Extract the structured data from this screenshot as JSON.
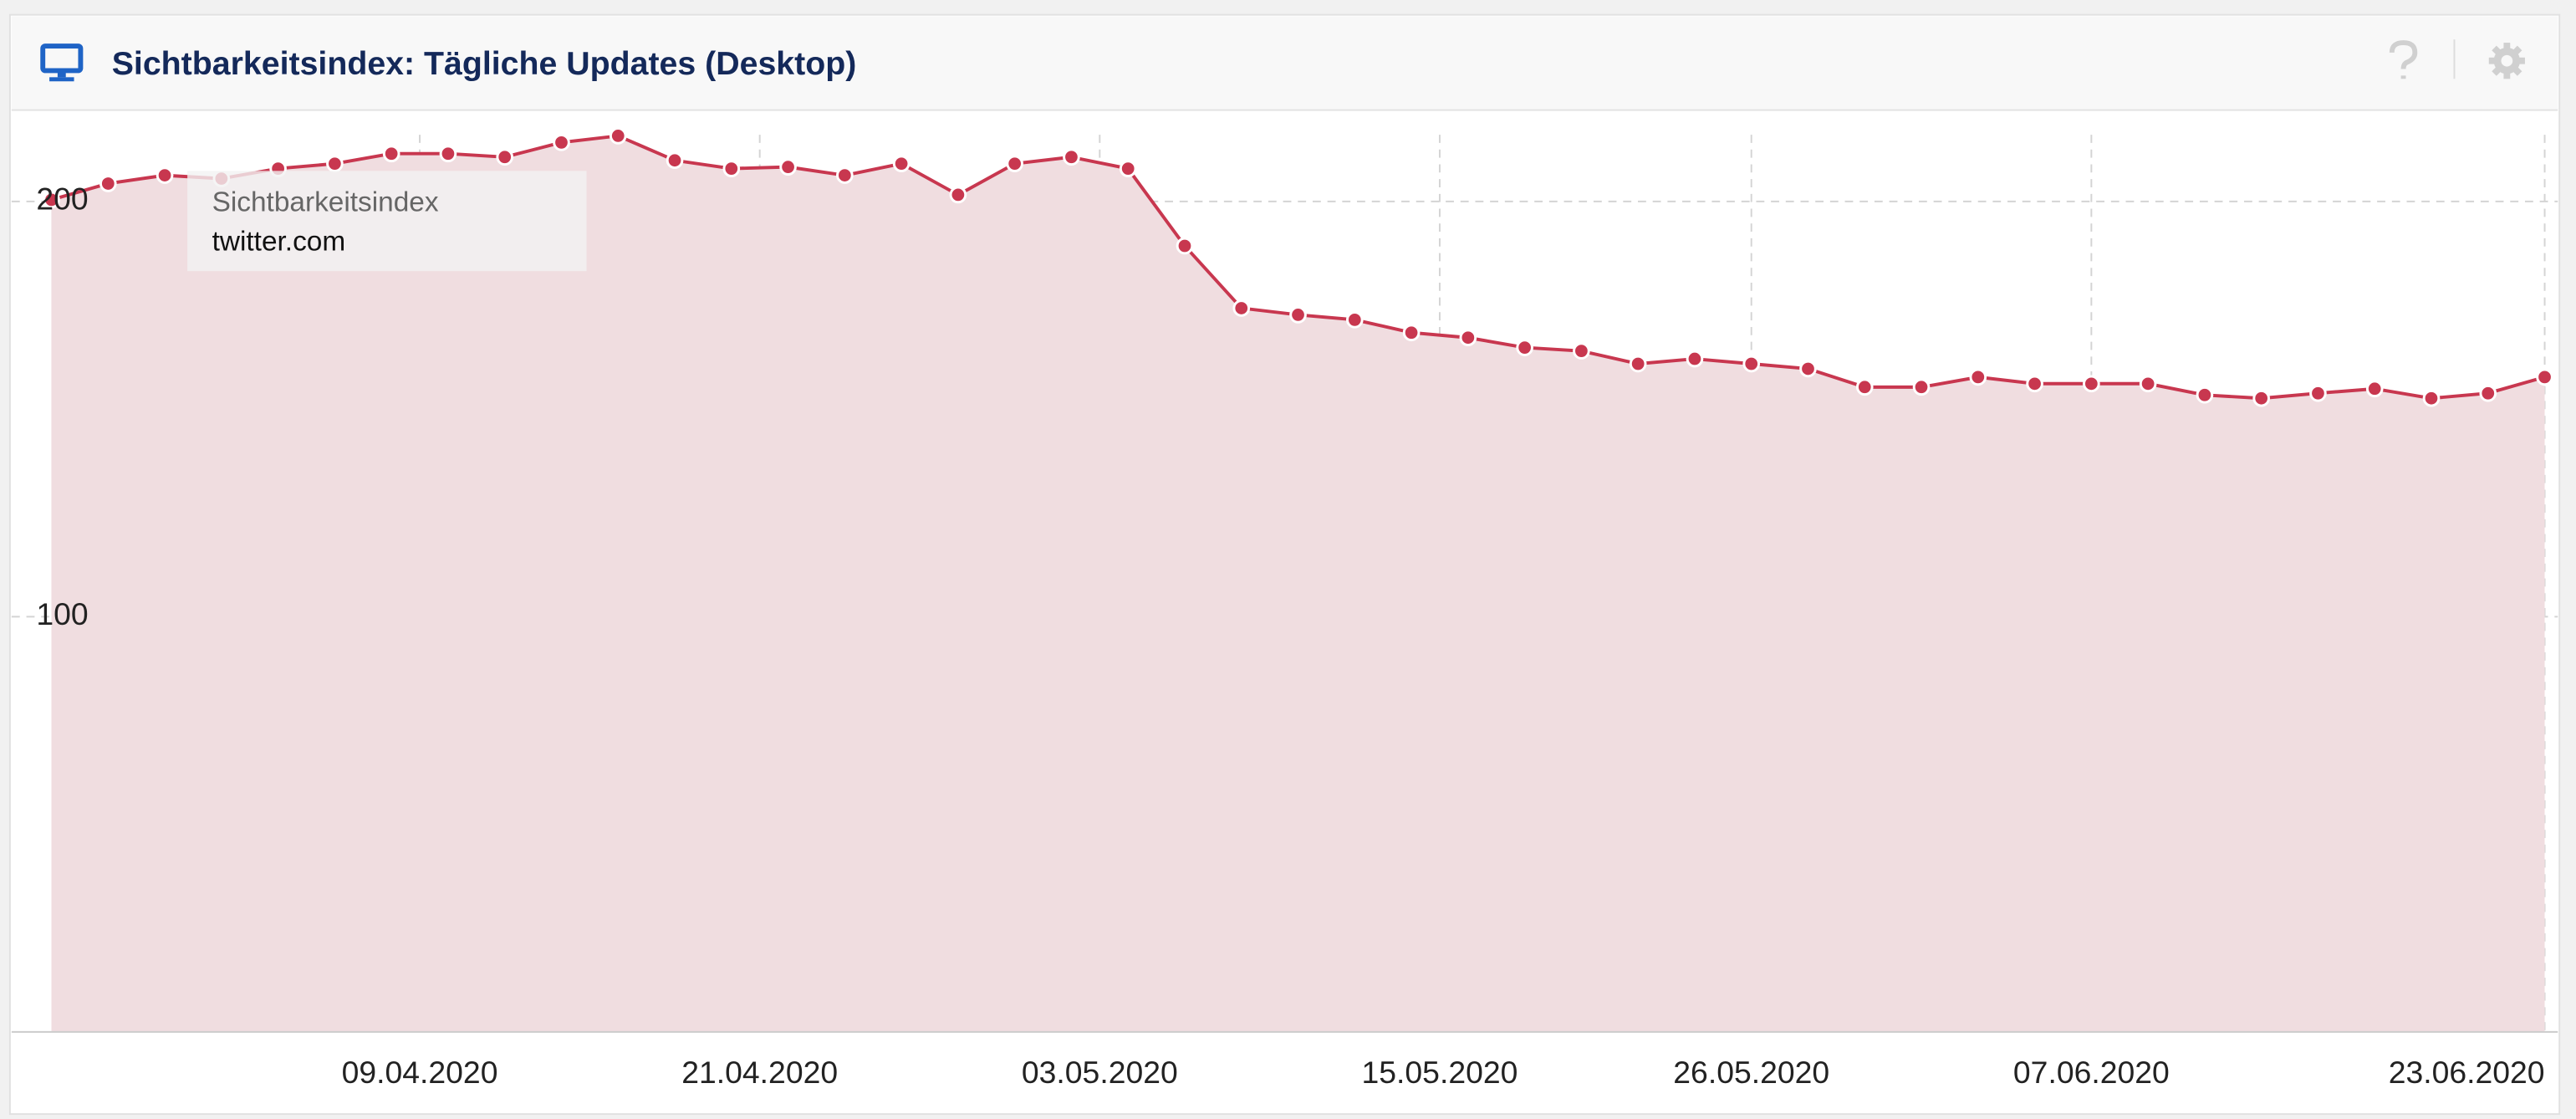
{
  "header": {
    "title": "Sichtbarkeitsindex: Tägliche Updates (Desktop)"
  },
  "chart_data": {
    "type": "area",
    "tooltip": {
      "title": "Sichtbarkeitsindex"
    },
    "x": [
      "2020-03-27",
      "2020-03-29",
      "2020-03-31",
      "2020-04-02",
      "2020-04-04",
      "2020-04-06",
      "2020-04-08",
      "2020-04-10",
      "2020-04-12",
      "2020-04-14",
      "2020-04-16",
      "2020-04-18",
      "2020-04-20",
      "2020-04-22",
      "2020-04-24",
      "2020-04-26",
      "2020-04-28",
      "2020-04-30",
      "2020-05-02",
      "2020-05-04",
      "2020-05-06",
      "2020-05-08",
      "2020-05-10",
      "2020-05-12",
      "2020-05-14",
      "2020-05-16",
      "2020-05-18",
      "2020-05-20",
      "2020-05-22",
      "2020-05-24",
      "2020-05-26",
      "2020-05-28",
      "2020-05-30",
      "2020-06-01",
      "2020-06-03",
      "2020-06-05",
      "2020-06-07",
      "2020-06-09",
      "2020-06-11",
      "2020-06-13",
      "2020-06-15",
      "2020-06-17",
      "2020-06-19",
      "2020-06-21",
      "2020-06-23"
    ],
    "series": [
      {
        "name": "twitter.com",
        "color": "#c8374f",
        "fill": "#f0dde0",
        "values": [
          200.4,
          204.3,
          206.3,
          205.5,
          207.9,
          209.1,
          211.5,
          211.5,
          210.7,
          214.2,
          215.8,
          209.9,
          207.9,
          208.3,
          206.3,
          209.1,
          201.6,
          209.1,
          210.7,
          207.9,
          189.3,
          174.3,
          172.7,
          171.5,
          168.4,
          167.2,
          164.8,
          164.0,
          160.9,
          162.1,
          160.9,
          159.7,
          155.3,
          155.3,
          157.7,
          156.1,
          156.1,
          156.1,
          153.4,
          152.6,
          153.8,
          154.9,
          152.6,
          153.8,
          157.7
        ]
      }
    ],
    "xlim": [
      "2020-03-26",
      "2020-06-23"
    ],
    "xticks": [
      {
        "value": "2020-04-09",
        "label": "09.04.2020"
      },
      {
        "value": "2020-04-21",
        "label": "21.04.2020"
      },
      {
        "value": "2020-05-03",
        "label": "03.05.2020"
      },
      {
        "value": "2020-05-15",
        "label": "15.05.2020"
      },
      {
        "value": "2020-05-26",
        "label": "26.05.2020"
      },
      {
        "value": "2020-06-07",
        "label": "07.06.2020"
      },
      {
        "value": "2020-06-23",
        "label": "23.06.2020"
      }
    ],
    "ylim": [
      0,
      222
    ],
    "yticks": [
      100,
      200
    ],
    "grid": true
  }
}
